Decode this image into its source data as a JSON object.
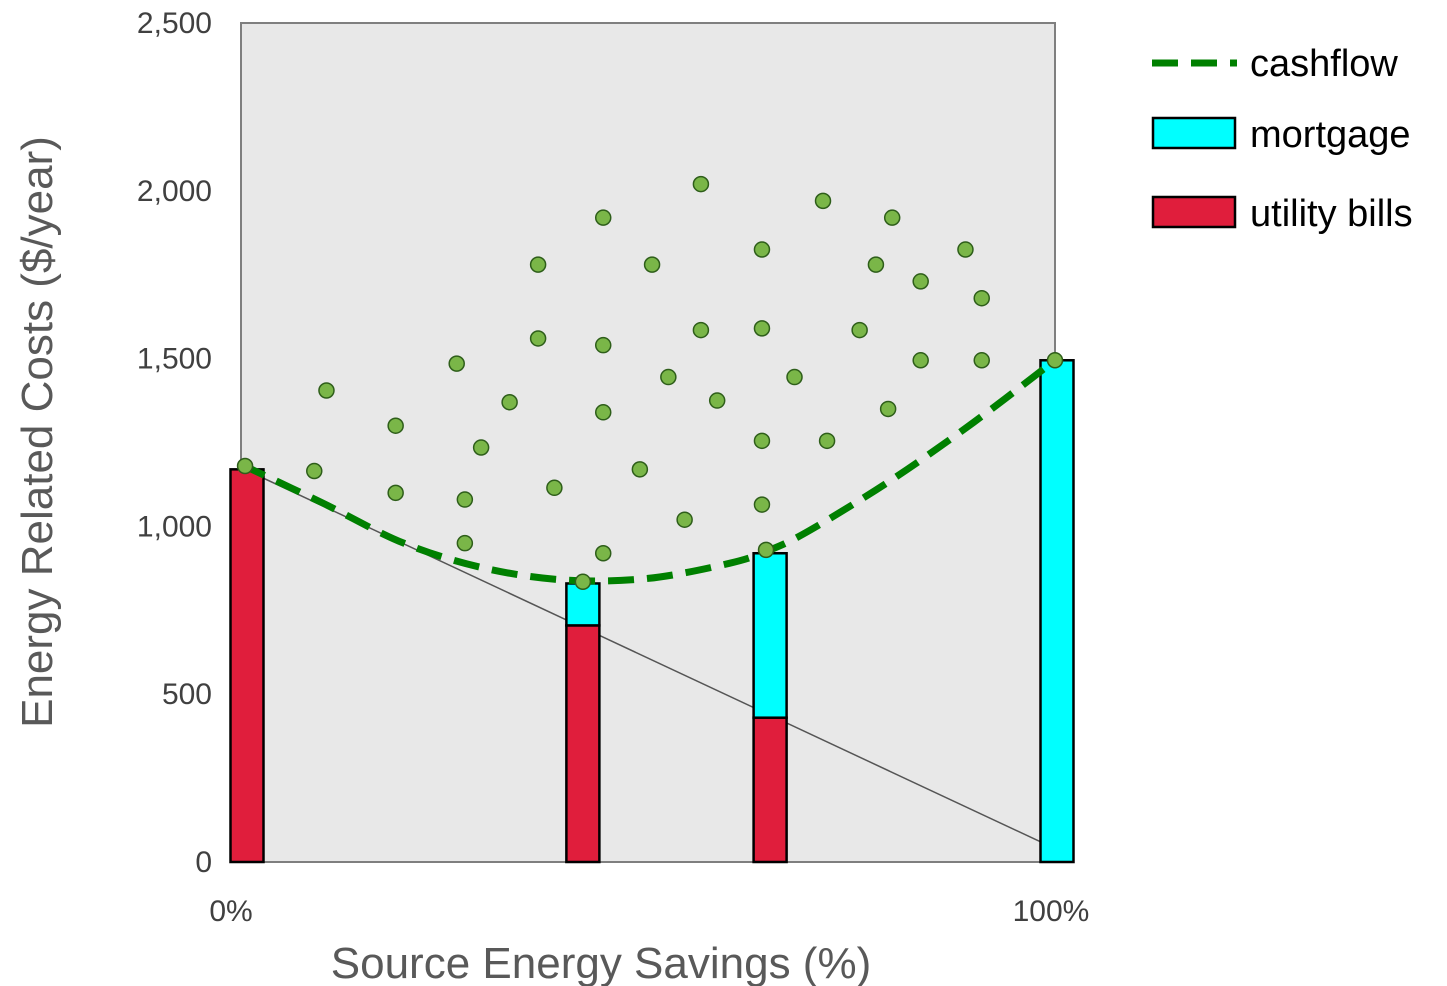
{
  "chart_data": {
    "type": "bar",
    "xlabel": "Source Energy Savings (%)",
    "ylabel": "Energy Related Costs ($/year)",
    "xlim": [
      0,
      100
    ],
    "ylim": [
      0,
      2500
    ],
    "grid": false,
    "legend_position": "top-right",
    "x_ticks": [
      "0%",
      "100%"
    ],
    "y_ticks": [
      "0",
      "500",
      "1,000",
      "1,500",
      "2,000",
      "2,500"
    ],
    "y_tick_values": [
      0,
      500,
      1000,
      1500,
      2000,
      2500
    ],
    "colors": {
      "plot_background": "#e8e8e8",
      "utility_bills": "#e01e3c",
      "mortgage": "#00ffff",
      "cashflow": "#008000",
      "points": "#7ab648"
    },
    "legend": [
      {
        "key": "cashflow",
        "label": "cashflow",
        "symbol": "dashed-line"
      },
      {
        "key": "mortgage",
        "label": "mortgage",
        "symbol": "box"
      },
      {
        "key": "utility_bills",
        "label": "utility bills",
        "symbol": "box"
      }
    ],
    "bars": [
      {
        "x": 0,
        "utility_bills": 1170,
        "mortgage": 0
      },
      {
        "x": 42,
        "utility_bills": 705,
        "mortgage": 125
      },
      {
        "x": 65,
        "utility_bills": 430,
        "mortgage": 490
      },
      {
        "x": 100,
        "utility_bills": 0,
        "mortgage": 1495
      }
    ],
    "cashflow_curve": [
      [
        0,
        1185
      ],
      [
        10,
        1070
      ],
      [
        20,
        950
      ],
      [
        30,
        875
      ],
      [
        40,
        840
      ],
      [
        50,
        845
      ],
      [
        60,
        890
      ],
      [
        65,
        930
      ],
      [
        70,
        990
      ],
      [
        80,
        1140
      ],
      [
        90,
        1310
      ],
      [
        100,
        1495
      ]
    ],
    "utility_trend_line": [
      [
        0,
        1175
      ],
      [
        100,
        40
      ]
    ],
    "scatter_points": [
      [
        0.5,
        1180
      ],
      [
        9,
        1165
      ],
      [
        10.5,
        1405
      ],
      [
        19,
        1100
      ],
      [
        19,
        1300
      ],
      [
        26.5,
        1485
      ],
      [
        27.5,
        950
      ],
      [
        27.5,
        1080
      ],
      [
        29.5,
        1235
      ],
      [
        33,
        1370
      ],
      [
        36.5,
        1560
      ],
      [
        36.5,
        1780
      ],
      [
        38.5,
        1115
      ],
      [
        42,
        835
      ],
      [
        44.5,
        920
      ],
      [
        44.5,
        1340
      ],
      [
        44.5,
        1540
      ],
      [
        44.5,
        1920
      ],
      [
        49,
        1170
      ],
      [
        50.5,
        1780
      ],
      [
        52.5,
        1445
      ],
      [
        54.5,
        1020
      ],
      [
        56.5,
        1585
      ],
      [
        56.5,
        2020
      ],
      [
        58.5,
        1375
      ],
      [
        64,
        1825
      ],
      [
        64,
        1590
      ],
      [
        64,
        1255
      ],
      [
        64,
        1065
      ],
      [
        64.5,
        930
      ],
      [
        68,
        1445
      ],
      [
        71.5,
        1970
      ],
      [
        72,
        1255
      ],
      [
        76,
        1585
      ],
      [
        78,
        1780
      ],
      [
        79.5,
        1350
      ],
      [
        80,
        1920
      ],
      [
        83.5,
        1495
      ],
      [
        83.5,
        1730
      ],
      [
        89,
        1825
      ],
      [
        91,
        1495
      ],
      [
        91,
        1680
      ],
      [
        100,
        1495
      ]
    ]
  }
}
